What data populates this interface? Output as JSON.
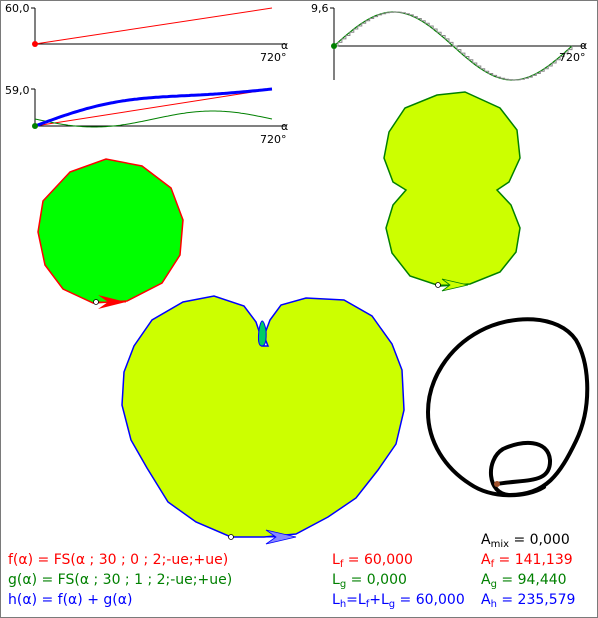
{
  "plots": {
    "f": {
      "ymax_label": "60,0",
      "axis_var": "α",
      "xmax_label": "720°"
    },
    "g": {
      "ymax_label": "9,6",
      "axis_var": "α",
      "xmax_label": "720°"
    },
    "h": {
      "ymax_label": "59,0",
      "axis_var": "α",
      "xmax_label": "720°"
    }
  },
  "formulas": {
    "f": "f(α) = FS(α ; 30 ; 0 ; 2;-ue;+ue)",
    "g": "g(α) = FS(α ; 30 ; 1 ; 2;-ue;+ue)",
    "h": "h(α) = f(α) + g(α)"
  },
  "lengths": {
    "f": {
      "sym": "L",
      "sub": "f",
      "value": " = 60,000"
    },
    "g": {
      "sym": "L",
      "sub": "g",
      "value": " = 0,000"
    },
    "h": {
      "sym": "L",
      "sub": "h",
      "eq": "=L",
      "sub2": "f",
      "plus": "+L",
      "sub3": "g",
      "value": " = 60,000"
    }
  },
  "areas": {
    "mix": {
      "sym": "A",
      "sub": "mix",
      "value": " = 0,000"
    },
    "f": {
      "sym": "A",
      "sub": "f",
      "value": " = 141,139"
    },
    "g": {
      "sym": "A",
      "sub": "g",
      "value": " = 94,440"
    },
    "h": {
      "sym": "A",
      "sub": "h",
      "value": " = 235,579"
    }
  },
  "colors": {
    "f": "#ff0000",
    "g": "#008000",
    "h": "#0000ff",
    "fill_f": "#00ff00",
    "fill_g": "#ccff00",
    "fill_h": "#ccff00",
    "trace": "#000000"
  }
}
